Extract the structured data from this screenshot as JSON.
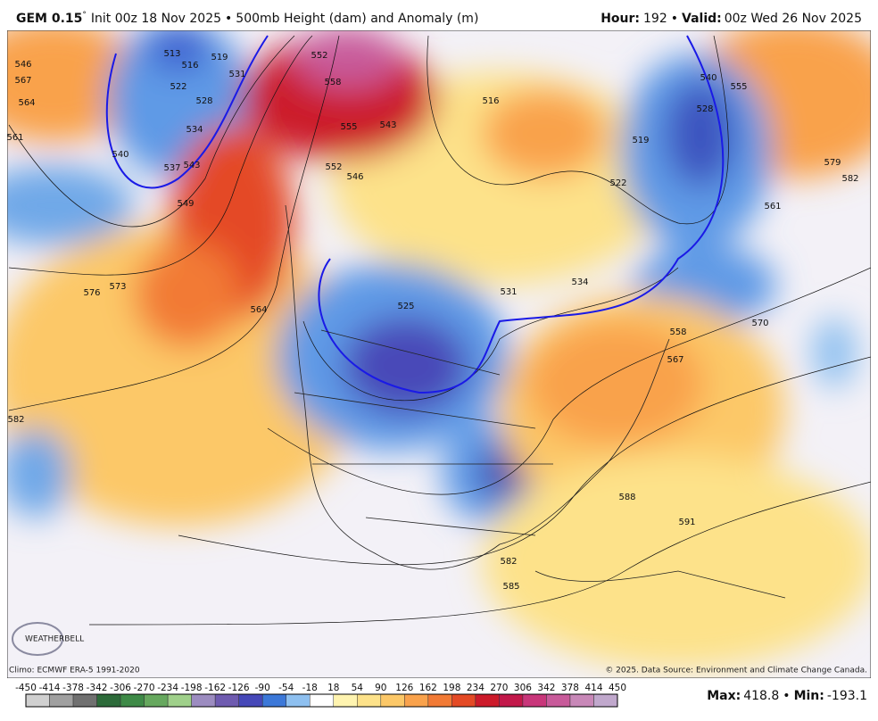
{
  "header": {
    "model": "GEM 0.15",
    "degree": "°",
    "init": "Init 00z 18 Nov 2025",
    "bullet": "•",
    "product": "500mb Height (dam) and Anomaly (m)",
    "hour_label": "Hour:",
    "hour": "192",
    "valid_label": "Valid:",
    "valid": "00z Wed 26 Nov 2025"
  },
  "map": {
    "contour_labels": [
      "546",
      "567",
      "564",
      "561",
      "513",
      "516",
      "519",
      "522",
      "528",
      "531",
      "534",
      "537",
      "540",
      "543",
      "549",
      "552",
      "558",
      "555",
      "552",
      "546",
      "543",
      "576",
      "573",
      "564",
      "582",
      "525",
      "531",
      "534",
      "558",
      "567",
      "570",
      "561",
      "579",
      "582",
      "555",
      "540",
      "528",
      "519",
      "522",
      "516",
      "588",
      "591",
      "582",
      "585"
    ],
    "logo": "WEATHERBELL"
  },
  "footer": {
    "climo": "Climo: ECMWF ERA-5 1991-2020",
    "copyright": "© 2025. Data Source: Environment and Climate Change Canada.",
    "max_label": "Max:",
    "max": 418.8,
    "min_label": "Min:",
    "min": -193.1
  },
  "colorbar": {
    "ticks": [
      -450,
      -414,
      -378,
      -342,
      -306,
      -270,
      -234,
      -198,
      -162,
      -126,
      -90,
      -54,
      -18,
      18,
      54,
      90,
      126,
      162,
      198,
      234,
      270,
      306,
      342,
      378,
      414,
      450
    ],
    "colors": [
      "#d0d0d0",
      "#a0a0a0",
      "#707070",
      "#2d6b3a",
      "#3e8a47",
      "#66a85e",
      "#9fd08a",
      "#9c8cc0",
      "#6f5bb0",
      "#4648b8",
      "#3c78d8",
      "#8ec0f0",
      "#ffffff",
      "#fff4b0",
      "#fde28a",
      "#fcc868",
      "#f9a24c",
      "#f27a35",
      "#e44a25",
      "#cc1a2a",
      "#c2184a",
      "#c8367a",
      "#c85a9a",
      "#c888b8",
      "#c0a8cc"
    ]
  }
}
